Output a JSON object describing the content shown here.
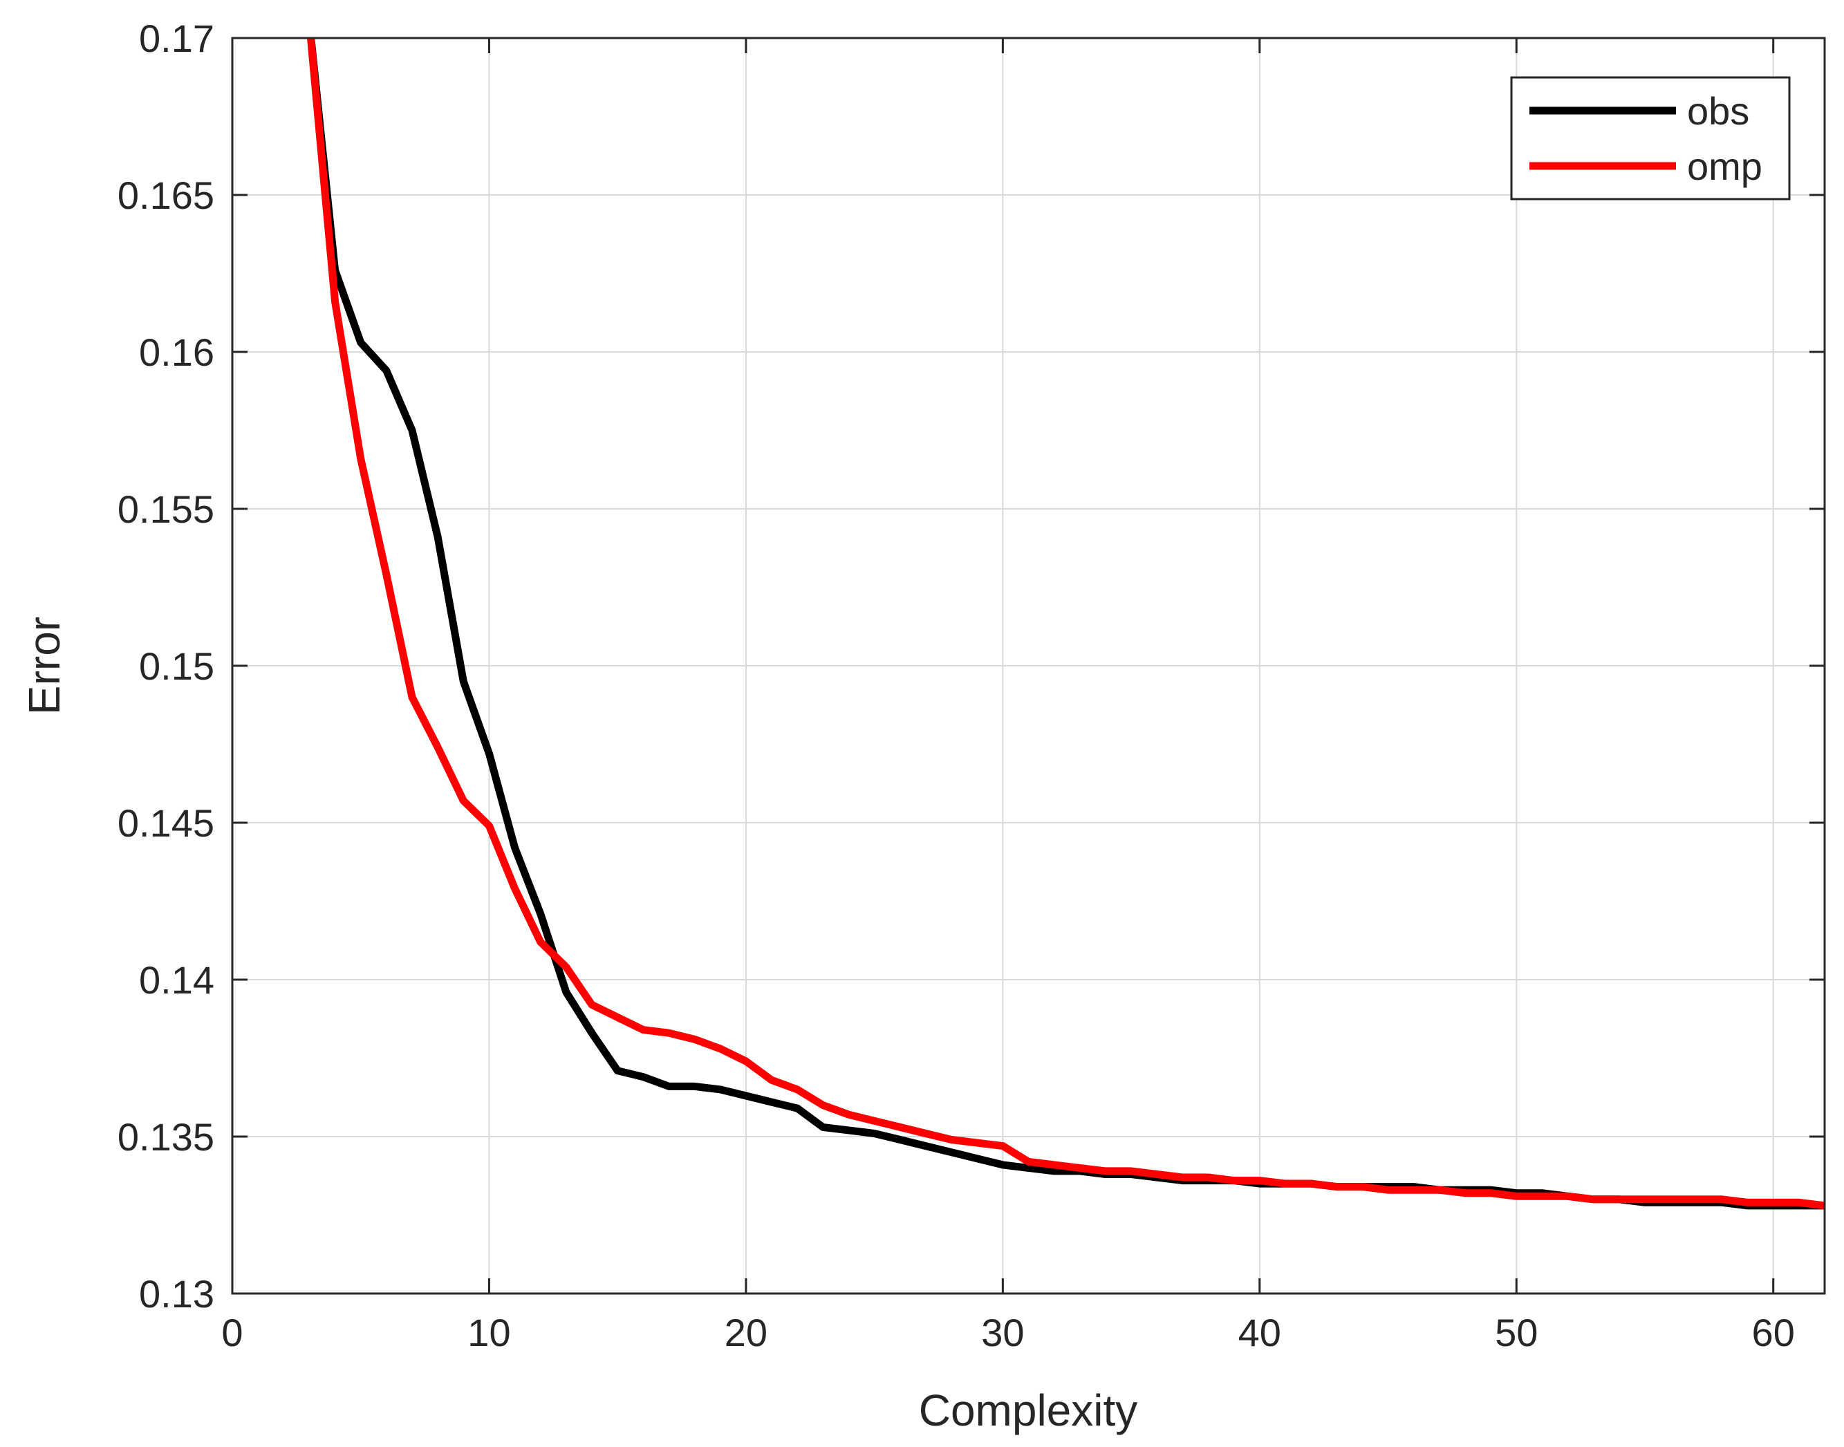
{
  "chart_data": {
    "type": "line",
    "title": "",
    "xlabel": "Complexity",
    "ylabel": "Error",
    "xlim": [
      0,
      62
    ],
    "ylim": [
      0.13,
      0.17
    ],
    "xticks": [
      "0",
      "10",
      "20",
      "30",
      "40",
      "50",
      "60"
    ],
    "yticks": [
      "0.13",
      "0.135",
      "0.14",
      "0.145",
      "0.15",
      "0.155",
      "0.16",
      "0.165",
      "0.17"
    ],
    "grid": true,
    "legend_position": "top-right",
    "series": [
      {
        "name": "obs",
        "color": "#000000",
        "x": [
          3,
          4,
          5,
          6,
          7,
          8,
          9,
          10,
          11,
          12,
          13,
          14,
          15,
          16,
          17,
          18,
          19,
          20,
          21,
          22,
          23,
          24,
          25,
          26,
          27,
          28,
          29,
          30,
          31,
          32,
          33,
          34,
          35,
          36,
          37,
          38,
          39,
          40,
          41,
          42,
          43,
          44,
          45,
          46,
          47,
          48,
          49,
          50,
          51,
          52,
          53,
          54,
          55,
          56,
          57,
          58,
          59,
          60,
          61,
          62
        ],
        "y": [
          0.1705,
          0.1626,
          0.1603,
          0.1594,
          0.1575,
          0.1541,
          0.1495,
          0.1472,
          0.1442,
          0.1421,
          0.1396,
          0.1383,
          0.1371,
          0.1369,
          0.1366,
          0.1366,
          0.1365,
          0.1363,
          0.1361,
          0.1359,
          0.1353,
          0.1352,
          0.1351,
          0.1349,
          0.1347,
          0.1345,
          0.1343,
          0.1341,
          0.134,
          0.1339,
          0.1339,
          0.1338,
          0.1338,
          0.1337,
          0.1336,
          0.1336,
          0.1336,
          0.1335,
          0.1335,
          0.1335,
          0.1334,
          0.1334,
          0.1334,
          0.1334,
          0.1333,
          0.1333,
          0.1333,
          0.1332,
          0.1332,
          0.1331,
          0.133,
          0.133,
          0.1329,
          0.1329,
          0.1329,
          0.1329,
          0.1328,
          0.1328,
          0.1328,
          0.1328
        ]
      },
      {
        "name": "omp",
        "color": "#ff0000",
        "x": [
          3,
          4,
          5,
          6,
          7,
          8,
          9,
          10,
          11,
          12,
          13,
          14,
          15,
          16,
          17,
          18,
          19,
          20,
          21,
          22,
          23,
          24,
          25,
          26,
          27,
          28,
          29,
          30,
          31,
          32,
          33,
          34,
          35,
          36,
          37,
          38,
          39,
          40,
          41,
          42,
          43,
          44,
          45,
          46,
          47,
          48,
          49,
          50,
          51,
          52,
          53,
          54,
          55,
          56,
          57,
          58,
          59,
          60,
          61,
          62
        ],
        "y": [
          0.1705,
          0.1616,
          0.1566,
          0.1529,
          0.149,
          0.1474,
          0.1457,
          0.1449,
          0.1429,
          0.1412,
          0.1404,
          0.1392,
          0.1388,
          0.1384,
          0.1383,
          0.1381,
          0.1378,
          0.1374,
          0.1368,
          0.1365,
          0.136,
          0.1357,
          0.1355,
          0.1353,
          0.1351,
          0.1349,
          0.1348,
          0.1347,
          0.1342,
          0.1341,
          0.134,
          0.1339,
          0.1339,
          0.1338,
          0.1337,
          0.1337,
          0.1336,
          0.1336,
          0.1335,
          0.1335,
          0.1334,
          0.1334,
          0.1333,
          0.1333,
          0.1333,
          0.1332,
          0.1332,
          0.1331,
          0.1331,
          0.1331,
          0.133,
          0.133,
          0.133,
          0.133,
          0.133,
          0.133,
          0.1329,
          0.1329,
          0.1329,
          0.1328
        ]
      }
    ]
  }
}
